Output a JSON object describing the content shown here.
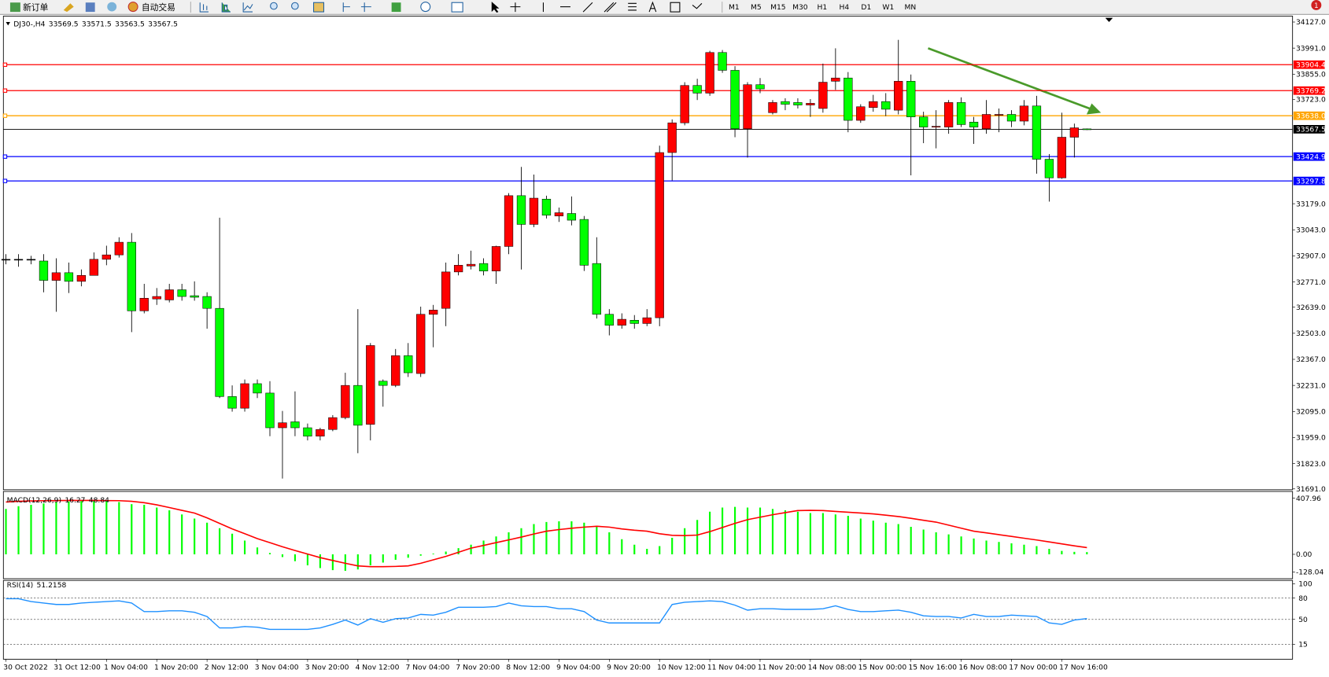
{
  "toolbar": {
    "new_order": "新订单",
    "auto_trading": "自动交易",
    "timeframes": [
      "M1",
      "M5",
      "M15",
      "M30",
      "H1",
      "H4",
      "D1",
      "W1",
      "MN"
    ],
    "badge": "1"
  },
  "chart_data": [
    {
      "type": "candlestick",
      "symbol": "DJ30-,H4",
      "up_color": "#ff0000",
      "down_color": "#00ff00",
      "current_price_color": "#000000",
      "categories": [
        "30 Oct 2022",
        null,
        null,
        null,
        "31 Oct 12:00",
        null,
        null,
        null,
        "1 Nov 04:00",
        null,
        null,
        null,
        "1 Nov 20:00",
        null,
        null,
        null,
        "2 Nov 12:00",
        null,
        null,
        null,
        "3 Nov 04:00",
        null,
        null,
        null,
        "3 Nov 20:00",
        null,
        null,
        null,
        "4 Nov 12:00",
        null,
        null,
        null,
        "7 Nov 04:00",
        null,
        null,
        null,
        "7 Nov 20:00",
        null,
        null,
        null,
        "8 Nov 12:00",
        null,
        null,
        null,
        "9 Nov 04:00",
        null,
        null,
        null,
        "9 Nov 20:00",
        null,
        null,
        null,
        "10 Nov 12:00",
        null,
        null,
        null,
        "11 Nov 04:00",
        null,
        null,
        null,
        "11 Nov 20:00",
        null,
        null,
        null,
        "14 Nov 08:00",
        null,
        null,
        null,
        "15 Nov 00:00",
        null,
        null,
        null,
        "15 Nov 16:00",
        null,
        null,
        null,
        "16 Nov 08:00",
        null,
        null,
        null,
        "17 Nov 00:00",
        null,
        null,
        null,
        "17 Nov 16:00",
        null,
        null
      ],
      "candles": [
        [
          32889,
          32916,
          32863,
          32889
        ],
        [
          32889,
          32916,
          32850,
          32889
        ],
        [
          32889,
          32907,
          32863,
          32889
        ],
        [
          32880,
          32916,
          32717,
          32779
        ],
        [
          32779,
          32894,
          32615,
          32819
        ],
        [
          32819,
          32872,
          32713,
          32774
        ],
        [
          32774,
          32836,
          32748,
          32805
        ],
        [
          32805,
          32925,
          32805,
          32889
        ],
        [
          32889,
          32960,
          32858,
          32912
        ],
        [
          32912,
          33004,
          32898,
          32978
        ],
        [
          32978,
          33026,
          32509,
          32620
        ],
        [
          32620,
          32761,
          32607,
          32686
        ],
        [
          32682,
          32739,
          32651,
          32695
        ],
        [
          32677,
          32761,
          32664,
          32730
        ],
        [
          32730,
          32761,
          32673,
          32695
        ],
        [
          32699,
          32774,
          32673,
          32691
        ],
        [
          32695,
          32717,
          32527,
          32633
        ],
        [
          32633,
          33106,
          32165,
          32173
        ],
        [
          32173,
          32231,
          32094,
          32112
        ],
        [
          32112,
          32262,
          32094,
          32240
        ],
        [
          32240,
          32262,
          32165,
          32191
        ],
        [
          32191,
          32253,
          31966,
          32010
        ],
        [
          32010,
          32098,
          31745,
          32036
        ],
        [
          32041,
          32200,
          31966,
          32010
        ],
        [
          32010,
          32032,
          31944,
          31966
        ],
        [
          31966,
          32010,
          31944,
          32001
        ],
        [
          32001,
          32076,
          31992,
          32063
        ],
        [
          32063,
          32297,
          32054,
          32231
        ],
        [
          32231,
          32629,
          31877,
          32023
        ],
        [
          32028,
          32452,
          31944,
          32439
        ],
        [
          32253,
          32262,
          32120,
          32231
        ],
        [
          32231,
          32421,
          32222,
          32386
        ],
        [
          32386,
          32452,
          32275,
          32297
        ],
        [
          32293,
          32642,
          32275,
          32602
        ],
        [
          32602,
          32651,
          32430,
          32624
        ],
        [
          32633,
          32872,
          32540,
          32823
        ],
        [
          32823,
          32916,
          32805,
          32858
        ],
        [
          32854,
          32934,
          32836,
          32863
        ],
        [
          32867,
          32894,
          32805,
          32828
        ],
        [
          32828,
          32960,
          32761,
          32956
        ],
        [
          32956,
          33234,
          32916,
          33221
        ],
        [
          33221,
          33371,
          32836,
          33071
        ],
        [
          33071,
          33331,
          33057,
          33208
        ],
        [
          33203,
          33221,
          33102,
          33119
        ],
        [
          33115,
          33159,
          33084,
          33132
        ],
        [
          33128,
          33217,
          33066,
          33093
        ],
        [
          33097,
          33115,
          32828,
          32858
        ],
        [
          32867,
          33004,
          32580,
          32602
        ],
        [
          32602,
          32629,
          32492,
          32545
        ],
        [
          32545,
          32607,
          32527,
          32576
        ],
        [
          32571,
          32598,
          32527,
          32554
        ],
        [
          32554,
          32629,
          32540,
          32584
        ],
        [
          32584,
          33482,
          32540,
          33446
        ],
        [
          33446,
          33619,
          33300,
          33601
        ],
        [
          33601,
          33813,
          33588,
          33796
        ],
        [
          33796,
          33831,
          33720,
          33756
        ],
        [
          33756,
          33977,
          33742,
          33968
        ],
        [
          33968,
          33981,
          33862,
          33875
        ],
        [
          33875,
          33897,
          33526,
          33570
        ],
        [
          33570,
          33813,
          33420,
          33800
        ],
        [
          33800,
          33835,
          33756,
          33778
        ],
        [
          33654,
          33720,
          33645,
          33707
        ],
        [
          33712,
          33729,
          33667,
          33698
        ],
        [
          33707,
          33729,
          33676,
          33694
        ],
        [
          33694,
          33725,
          33632,
          33703
        ],
        [
          33676,
          33910,
          33654,
          33813
        ],
        [
          33818,
          33990,
          33773,
          33835
        ],
        [
          33835,
          33866,
          33552,
          33614
        ],
        [
          33614,
          33698,
          33601,
          33685
        ],
        [
          33681,
          33747,
          33659,
          33712
        ],
        [
          33712,
          33756,
          33636,
          33672
        ],
        [
          33667,
          34034,
          33645,
          33818
        ],
        [
          33818,
          33853,
          33327,
          33632
        ],
        [
          33632,
          33659,
          33495,
          33579
        ],
        [
          33579,
          33667,
          33468,
          33583
        ],
        [
          33579,
          33720,
          33544,
          33707
        ],
        [
          33707,
          33734,
          33579,
          33592
        ],
        [
          33605,
          33632,
          33491,
          33579
        ],
        [
          33570,
          33720,
          33544,
          33645
        ],
        [
          33641,
          33676,
          33552,
          33645
        ],
        [
          33645,
          33667,
          33579,
          33610
        ],
        [
          33610,
          33720,
          33588,
          33689
        ],
        [
          33689,
          33742,
          33336,
          33411
        ],
        [
          33411,
          33438,
          33190,
          33314
        ],
        [
          33314,
          33654,
          33309,
          33526
        ],
        [
          33526,
          33597,
          33420,
          33575
        ],
        [
          33569.5,
          33571.5,
          33563.5,
          33567.5
        ]
      ],
      "ylim": [
        31691,
        34127
      ],
      "yticks": [
        {
          "value": 34127,
          "label": "34127.0"
        },
        {
          "value": 33991,
          "label": "33991.0"
        },
        {
          "value": 33855,
          "label": "33855.0"
        },
        {
          "value": 33723,
          "label": "33723.0"
        },
        {
          "value": 33179,
          "label": "33179.0"
        },
        {
          "value": 33043,
          "label": "33043.0"
        },
        {
          "value": 32907,
          "label": "32907.0"
        },
        {
          "value": 32771,
          "label": "32771.0"
        },
        {
          "value": 32639,
          "label": "32639.0"
        },
        {
          "value": 32503,
          "label": "32503.0"
        },
        {
          "value": 32367,
          "label": "32367.0"
        },
        {
          "value": 32231,
          "label": "32231.0"
        },
        {
          "value": 32095,
          "label": "32095.0"
        },
        {
          "value": 31959,
          "label": "31959.0"
        },
        {
          "value": 31823,
          "label": "31823.0"
        },
        {
          "value": 31691,
          "label": "31691.0"
        }
      ],
      "hlines": [
        {
          "value": 33904.4,
          "color": "#ff0000"
        },
        {
          "value": 33769.2,
          "color": "#ff0000"
        },
        {
          "value": 33638,
          "label": "33638.0",
          "color": "#ffa500"
        },
        {
          "value": 33424.9,
          "color": "#0000ff"
        },
        {
          "value": 33297.8,
          "color": "#0000ff"
        }
      ]
    },
    {
      "type": "macd",
      "name": "MACD(12,26,9)",
      "hist_color": "#00ff00",
      "signal_color": "#ff0000",
      "histogram": [
        330,
        350,
        360,
        370,
        380,
        385,
        388,
        388,
        385,
        380,
        365,
        360,
        340,
        320,
        290,
        260,
        230,
        190,
        150,
        100,
        50,
        10,
        -20,
        -50,
        -80,
        -100,
        -115,
        -120,
        -110,
        -80,
        -60,
        -40,
        -25,
        -10,
        5,
        20,
        45,
        70,
        100,
        130,
        160,
        190,
        220,
        235,
        240,
        240,
        230,
        200,
        160,
        110,
        70,
        40,
        60,
        120,
        190,
        250,
        310,
        340,
        345,
        340,
        340,
        330,
        320,
        310,
        300,
        300,
        290,
        280,
        260,
        245,
        230,
        220,
        200,
        180,
        160,
        145,
        130,
        115,
        100,
        90,
        80,
        70,
        60,
        40,
        25,
        18,
        16.27
      ],
      "signal": [
        380,
        385,
        388,
        390,
        391,
        392,
        392,
        392,
        391,
        390,
        385,
        375,
        360,
        340,
        320,
        300,
        265,
        225,
        185,
        150,
        114,
        85,
        55,
        28,
        2,
        -24,
        -45,
        -65,
        -84,
        -90,
        -90,
        -88,
        -84,
        -65,
        -40,
        -15,
        15,
        45,
        65,
        85,
        105,
        125,
        148,
        168,
        180,
        190,
        198,
        204,
        198,
        185,
        175,
        168,
        150,
        138,
        136,
        140,
        165,
        195,
        225,
        252,
        270,
        288,
        303,
        318,
        320,
        318,
        312,
        306,
        300,
        294,
        285,
        275,
        262,
        248,
        234,
        212,
        190,
        168,
        156,
        143,
        130,
        117,
        104,
        90,
        76,
        62,
        48.84
      ],
      "ylim": [
        -128.04,
        407.96
      ],
      "yticks": [
        407.96,
        {
          "value": 0,
          "label": "0.00"
        },
        -128.04
      ]
    },
    {
      "type": "rsi",
      "name": "RSI(14)",
      "color": "#1e90ff",
      "values": [
        79,
        79,
        75,
        73,
        71,
        71,
        73,
        74,
        75,
        76,
        73,
        61,
        61,
        62,
        62,
        60,
        54,
        38,
        38,
        40,
        39,
        36,
        36,
        36,
        36,
        38,
        43,
        49,
        42,
        51,
        46,
        51,
        52,
        57,
        56,
        60,
        67,
        67,
        67,
        68,
        73,
        69,
        68,
        68,
        65,
        65,
        61,
        49,
        45,
        45,
        45,
        45,
        45,
        71,
        74,
        75,
        76,
        75,
        70,
        63,
        65,
        65,
        64,
        64,
        64,
        65,
        69,
        64,
        61,
        61,
        62,
        63,
        60,
        55,
        54,
        54,
        52,
        57,
        54,
        54,
        56,
        55,
        54,
        45,
        43,
        49,
        51.2158
      ],
      "ylim": [
        0,
        100
      ],
      "yticks": [
        100,
        80,
        50,
        15
      ]
    }
  ]
}
